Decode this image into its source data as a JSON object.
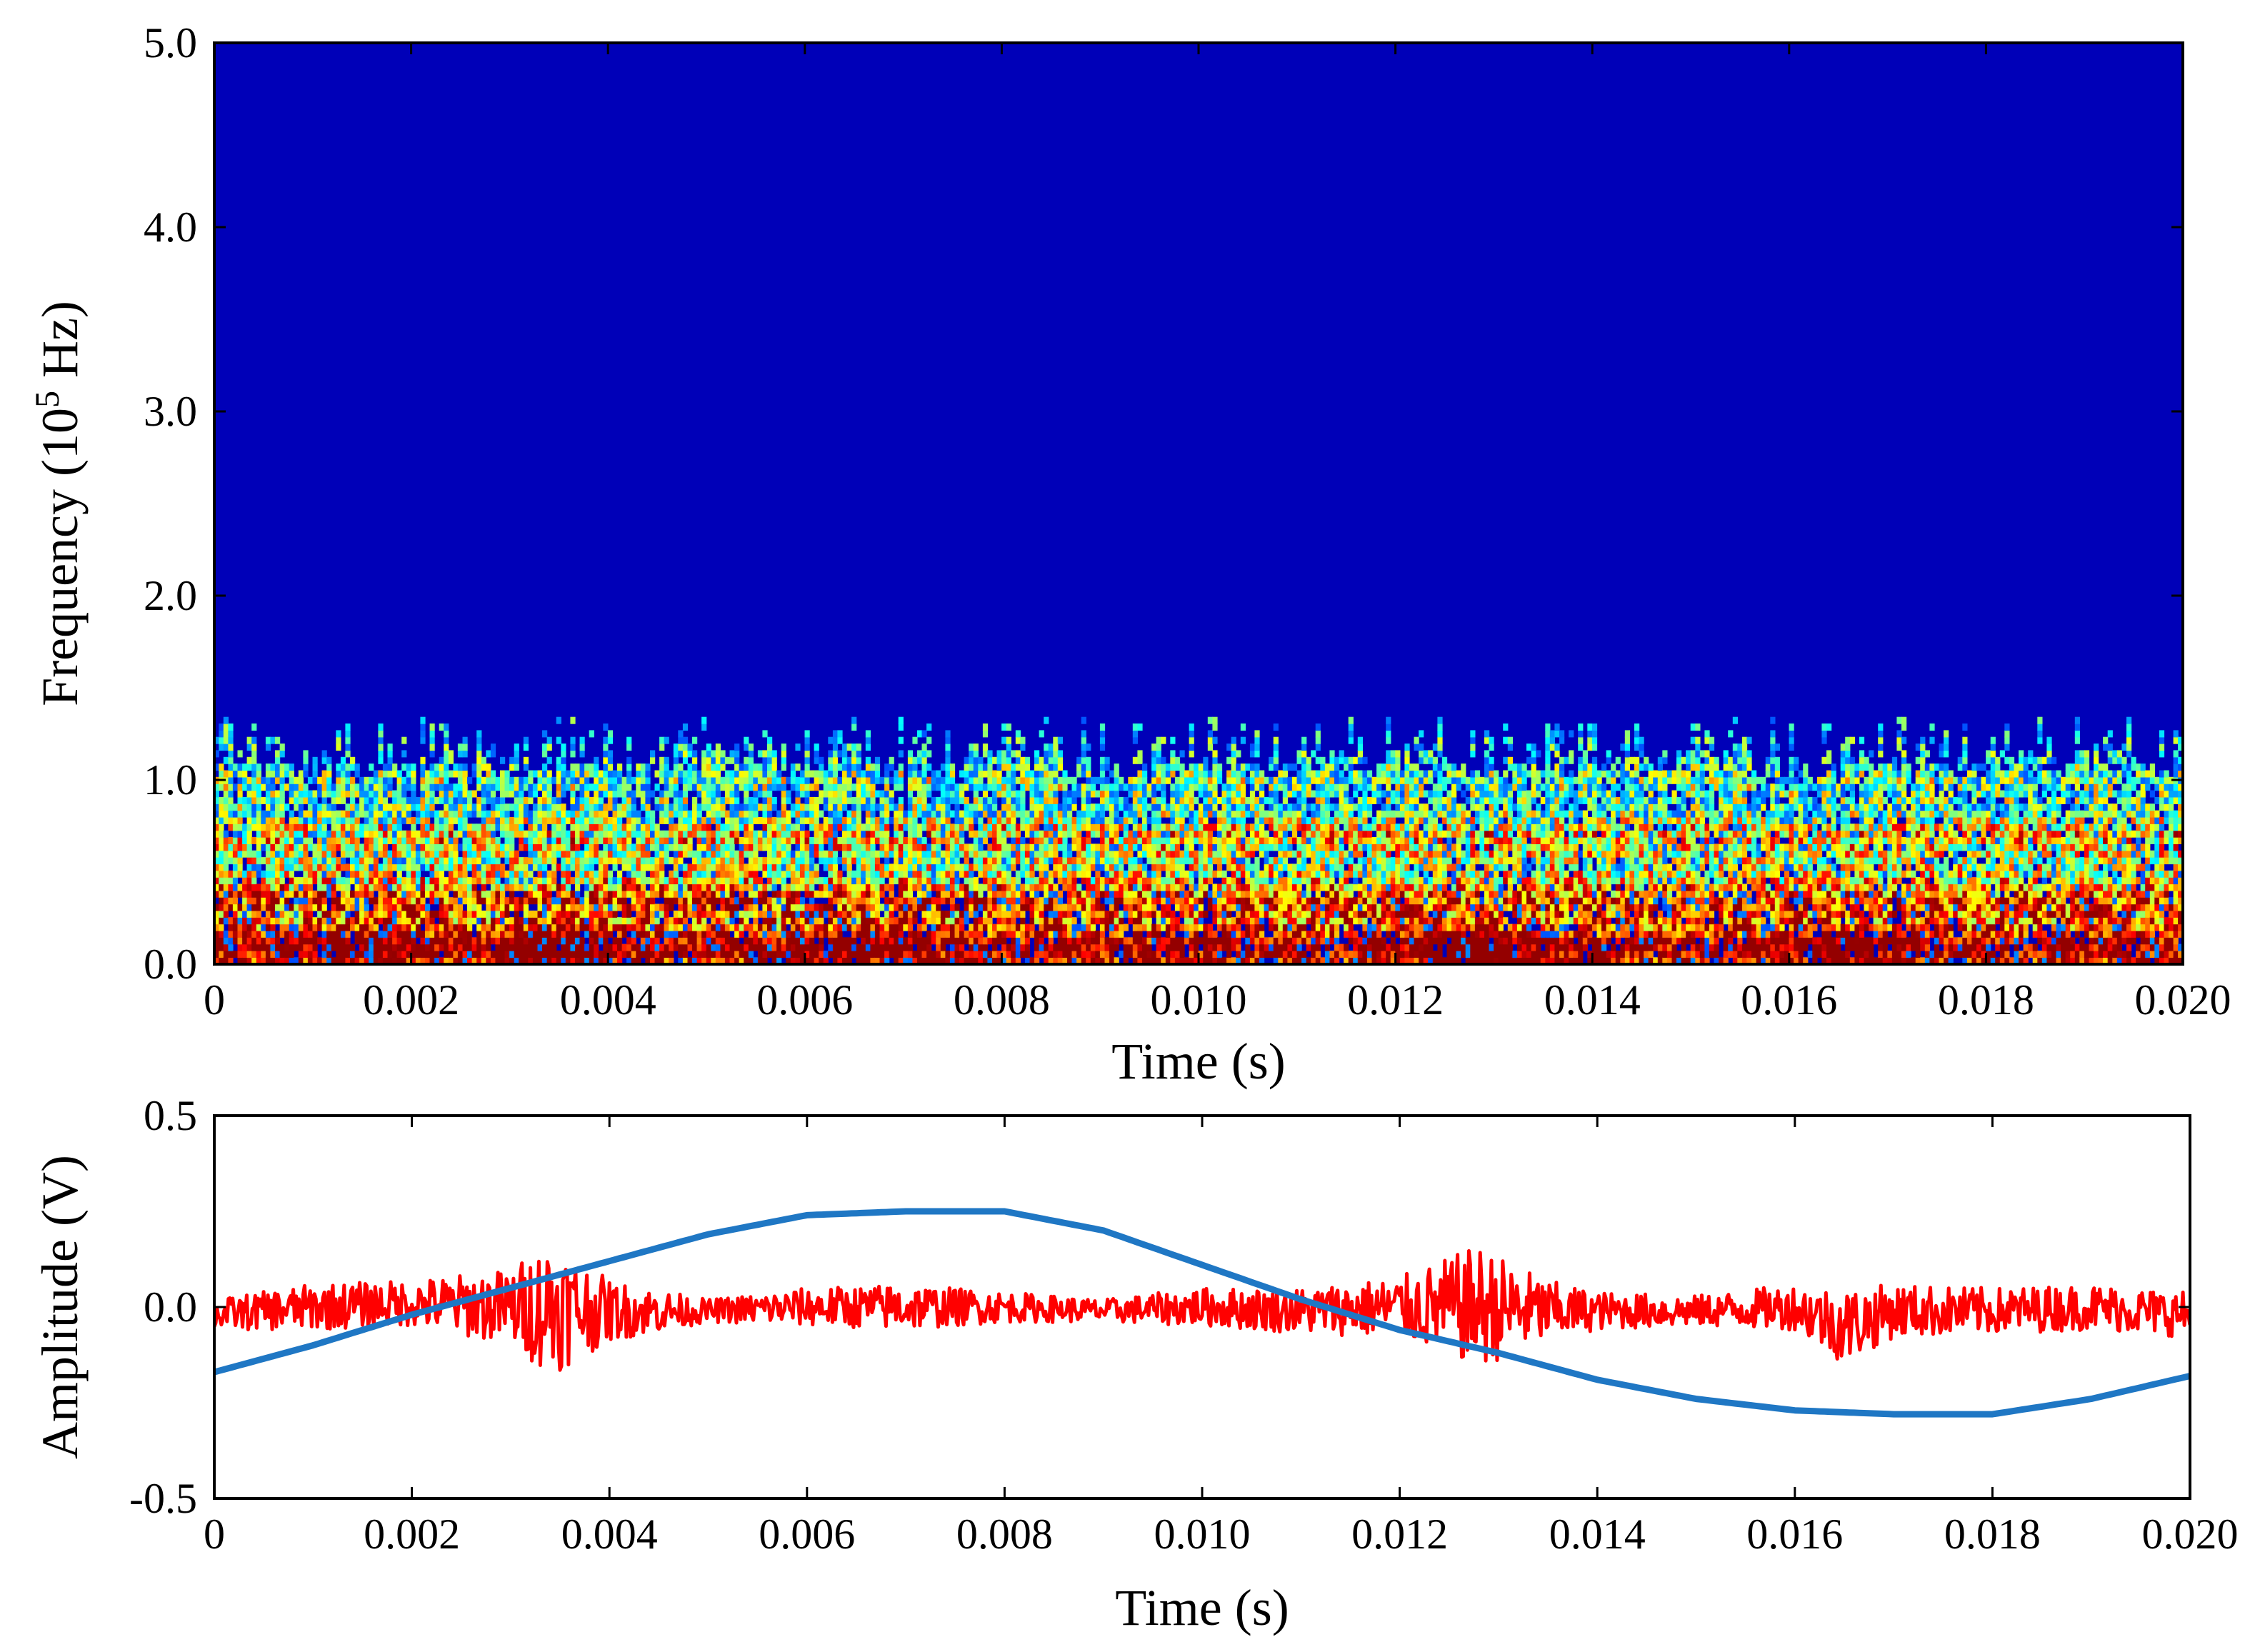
{
  "chart_data": [
    {
      "type": "heatmap",
      "title": "",
      "xlabel": "Time (s)",
      "ylabel": "Frequency (10",
      "ylabel_sup": "5",
      "ylabel_end": " Hz)",
      "xlim": [
        0,
        0.02
      ],
      "ylim": [
        0,
        5.0
      ],
      "x_ticks": [
        "0",
        "0.002",
        "0.004",
        "0.006",
        "0.008",
        "0.010",
        "0.012",
        "0.014",
        "0.016",
        "0.018",
        "0.020"
      ],
      "y_ticks": [
        "0.0",
        "1.0",
        "2.0",
        "3.0",
        "4.0",
        "5.0"
      ],
      "colormap": "jet",
      "background_color": "#0000b8",
      "grid": false,
      "energy_cutoff_freq": 1.3,
      "dominant_bands": [
        {
          "freq": 0.1,
          "level": "high"
        },
        {
          "freq": 0.35,
          "level": "medium"
        },
        {
          "freq": 0.7,
          "level": "medium"
        },
        {
          "freq": 1.0,
          "level": "low"
        }
      ],
      "hot_spots": [
        {
          "time": 0.0034,
          "freq": 0.08,
          "level": "peak"
        },
        {
          "time": 0.0128,
          "freq": 0.08,
          "level": "peak"
        },
        {
          "time": 0.0065,
          "freq": 0.1,
          "level": "high"
        },
        {
          "time": 0.0165,
          "freq": 0.1,
          "level": "high"
        },
        {
          "time": 0.0015,
          "freq": 0.1,
          "level": "high"
        }
      ]
    },
    {
      "type": "line",
      "title": "",
      "xlabel": "Time (s)",
      "ylabel": "Amplitude (V)",
      "xlim": [
        0,
        0.02
      ],
      "ylim": [
        -0.5,
        0.5
      ],
      "x_ticks": [
        "0",
        "0.002",
        "0.004",
        "0.006",
        "0.008",
        "0.010",
        "0.012",
        "0.014",
        "0.016",
        "0.018",
        "0.020"
      ],
      "y_ticks": [
        "-0.5",
        "0.0",
        "0.5"
      ],
      "grid": false,
      "series": [
        {
          "color": "#ff0000",
          "x": [
            0,
            0.001,
            0.002,
            0.003,
            0.0034,
            0.004,
            0.005,
            0.006,
            0.007,
            0.008,
            0.009,
            0.01,
            0.011,
            0.012,
            0.0128,
            0.0135,
            0.014,
            0.015,
            0.016,
            0.0165,
            0.017,
            0.018,
            0.019,
            0.02
          ],
          "baseline": [
            -0.02,
            0.0,
            0.01,
            0.0,
            0.0,
            -0.01,
            -0.01,
            0.0,
            0.0,
            0.0,
            -0.01,
            0.0,
            -0.01,
            0.0,
            0.0,
            -0.01,
            -0.01,
            -0.01,
            0.0,
            -0.05,
            -0.01,
            -0.01,
            0.0,
            -0.02
          ],
          "envelope": [
            0.04,
            0.06,
            0.06,
            0.1,
            0.18,
            0.08,
            0.03,
            0.05,
            0.06,
            0.04,
            0.03,
            0.05,
            0.06,
            0.08,
            0.16,
            0.08,
            0.05,
            0.04,
            0.06,
            0.1,
            0.07,
            0.06,
            0.06,
            0.06
          ]
        },
        {
          "color": "#1f77c4",
          "x": [
            0,
            0.001,
            0.002,
            0.003,
            0.004,
            0.005,
            0.006,
            0.007,
            0.008,
            0.009,
            0.01,
            0.011,
            0.012,
            0.013,
            0.014,
            0.015,
            0.016,
            0.017,
            0.018,
            0.019,
            0.02
          ],
          "y": [
            -0.17,
            -0.1,
            -0.02,
            0.05,
            0.12,
            0.19,
            0.24,
            0.25,
            0.25,
            0.2,
            0.11,
            0.02,
            -0.06,
            -0.12,
            -0.19,
            -0.24,
            -0.27,
            -0.28,
            -0.28,
            -0.24,
            -0.18
          ]
        }
      ]
    }
  ]
}
